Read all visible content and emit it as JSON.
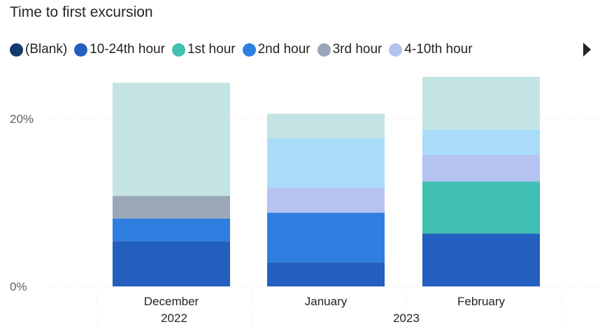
{
  "title": "Time to first excursion",
  "legend": [
    {
      "label": "(Blank)",
      "color": "#163a6b"
    },
    {
      "label": "10-24th hour",
      "color": "#235fbe"
    },
    {
      "label": "1st hour",
      "color": "#3fc0b2"
    },
    {
      "label": "2nd hour",
      "color": "#2f7fe0"
    },
    {
      "label": "3rd hour",
      "color": "#9aa7b9"
    },
    {
      "label": "4-10th hour",
      "color": "#b4c3ef"
    }
  ],
  "chart_data": {
    "type": "bar",
    "stacked": true,
    "categories": [
      "December",
      "January",
      "February"
    ],
    "years": [
      {
        "label": "2022",
        "categories": [
          "December"
        ]
      },
      {
        "label": "2023",
        "categories": [
          "January",
          "February"
        ]
      }
    ],
    "ylim": [
      0,
      25
    ],
    "yticks": [
      {
        "value": 0,
        "label": "0%"
      },
      {
        "value": 20,
        "label": "20%"
      }
    ],
    "series": [
      {
        "name": "10-24th hour",
        "color": "#235fbe",
        "values": [
          5.4,
          2.9,
          6.3
        ]
      },
      {
        "name": "1st hour",
        "color": "#3fc0b2",
        "values": [
          0,
          0,
          6.2
        ]
      },
      {
        "name": "2nd hour",
        "color": "#2f7fe0",
        "values": [
          2.7,
          5.9,
          0
        ]
      },
      {
        "name": "3rd hour",
        "color": "#9aa7b9",
        "values": [
          2.7,
          0,
          0
        ]
      },
      {
        "name": "4-10th hour",
        "color": "#b4c3ef",
        "values": [
          0,
          3.0,
          3.2
        ]
      },
      {
        "color": "#a9dcf8",
        "values": [
          0,
          5.9,
          3.0
        ]
      },
      {
        "color": "#c3e4e2",
        "values": [
          13.5,
          2.9,
          6.3
        ]
      }
    ]
  }
}
